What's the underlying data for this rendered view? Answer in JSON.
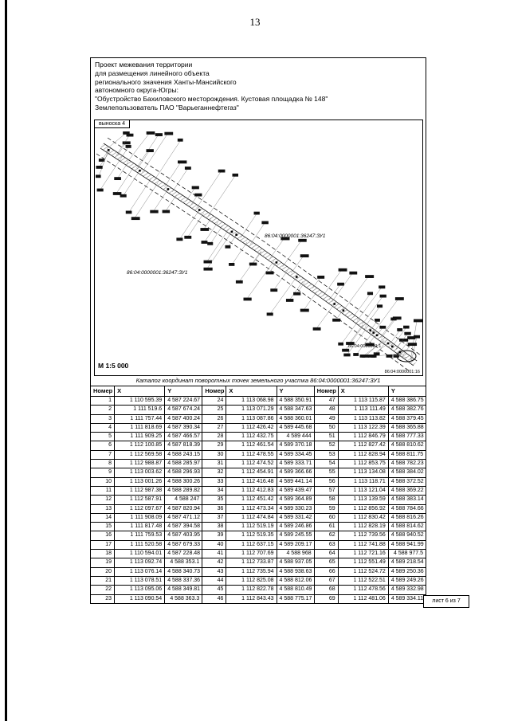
{
  "page": {
    "number": "13",
    "sheet_label": "лист 6 из 7"
  },
  "header": {
    "lines": [
      "Проект межевания территории",
      "для размещения линейного объекта",
      "регионального значения Ханты-Мансийского",
      "автономного округа-Югры:",
      "\"Обустройство Бахиловского месторождения. Кустовая площадка № 148\"",
      "Землепользователь ПАО \"Варьеганнефтегаз\""
    ]
  },
  "map": {
    "callout_label": "выноска 4",
    "scale_label": "М 1:5 000",
    "parcel_label_1": "86:04:0000001:36247:ЗУ1",
    "parcel_label_2": "86:04:0000001:36247:ЗУ1",
    "corner_label_right": "86:04:0000001:1",
    "corner_label_bottom": "86:04:0000001:16"
  },
  "table": {
    "caption": "Каталог координат поворотных точек земельного участка 86:04:0000001:36247:ЗУ1",
    "headers": [
      "Номер",
      "X",
      "Y",
      "Номер",
      "X",
      "Y",
      "Номер",
      "X",
      "Y"
    ],
    "rows": [
      [
        "1",
        "1 110 595.39",
        "4 587 224.67",
        "24",
        "1 113 068.98",
        "4 588 350.91",
        "47",
        "1 113 115.87",
        "4 588 386.75"
      ],
      [
        "2",
        "1 111 519.6",
        "4 587 674.24",
        "25",
        "1 113 071.29",
        "4 588 347.63",
        "48",
        "1 113 111.49",
        "4 588 382.76"
      ],
      [
        "3",
        "1 111 757.44",
        "4 587 400.24",
        "26",
        "1 113 087.86",
        "4 588 360.01",
        "49",
        "1 113 113.82",
        "4 588 379.45"
      ],
      [
        "4",
        "1 111 818.69",
        "4 587 390.34",
        "27",
        "1 112 426.42",
        "4 589 445.68",
        "50",
        "1 113 122.39",
        "4 588 365.88"
      ],
      [
        "5",
        "1 111 909.25",
        "4 587 466.57",
        "28",
        "1 112 432.75",
        "4 589 444",
        "51",
        "1 112 846.79",
        "4 588 777.33"
      ],
      [
        "6",
        "1 112 100.85",
        "4 587 818.39",
        "29",
        "1 112 461.54",
        "4 589 370.18",
        "52",
        "1 112 827.42",
        "4 588 810.62"
      ],
      [
        "7",
        "1 112 569.58",
        "4 588 243.15",
        "30",
        "1 112 478.55",
        "4 589 334.45",
        "53",
        "1 112 828.94",
        "4 588 811.75"
      ],
      [
        "8",
        "1 112 988.87",
        "4 588 285.97",
        "31",
        "1 112 474.52",
        "4 589 333.71",
        "54",
        "1 112 853.75",
        "4 588 782.23"
      ],
      [
        "9",
        "1 113 003.62",
        "4 588 296.93",
        "32",
        "1 112 454.91",
        "4 589 366.66",
        "55",
        "1 113 134.08",
        "4 588 384.02"
      ],
      [
        "10",
        "1 113 001.26",
        "4 588 300.26",
        "33",
        "1 112 416.48",
        "4 589 441.14",
        "56",
        "1 113 118.71",
        "4 588 372.52"
      ],
      [
        "11",
        "1 112 987.38",
        "4 588 289.82",
        "34",
        "1 112 412.83",
        "4 589 439.47",
        "57",
        "1 113 121.04",
        "4 588 369.22"
      ],
      [
        "12",
        "1 112 587.91",
        "4 588 247",
        "35",
        "1 112 451.42",
        "4 589 364.89",
        "58",
        "1 113 139.59",
        "4 588 383.14"
      ],
      [
        "13",
        "1 112 097.67",
        "4 587 820.94",
        "36",
        "1 112 473.34",
        "4 589 330.23",
        "59",
        "1 112 856.92",
        "4 588 784.66"
      ],
      [
        "14",
        "1 111 908.09",
        "4 587 471.12",
        "37",
        "1 112 474.84",
        "4 589 331.42",
        "60",
        "1 112 830.42",
        "4 588 816.26"
      ],
      [
        "15",
        "1 111 817.48",
        "4 587 394.58",
        "38",
        "1 112 519.19",
        "4 589 246.86",
        "61",
        "1 112 828.19",
        "4 588 814.62"
      ],
      [
        "16",
        "1 111 759.53",
        "4 587 403.95",
        "39",
        "1 112 519.35",
        "4 589 245.55",
        "62",
        "1 112 739.56",
        "4 588 940.52"
      ],
      [
        "17",
        "1 111 520.58",
        "4 587 679.33",
        "40",
        "1 112 637.15",
        "4 589 209.17",
        "63",
        "1 112 741.88",
        "4 588 941.99"
      ],
      [
        "18",
        "1 110 594.01",
        "4 587 228.48",
        "41",
        "1 112 707.69",
        "4 588 968",
        "64",
        "1 112 721.16",
        "4 588 977.5"
      ],
      [
        "19",
        "1 113 092.74",
        "4 588 353.1",
        "42",
        "1 112 733.87",
        "4 588 937.05",
        "65",
        "1 112 551.49",
        "4 589 218.54"
      ],
      [
        "20",
        "1 113 076.14",
        "4 588 340.73",
        "43",
        "1 112 735.94",
        "4 588 938.63",
        "66",
        "1 112 524.72",
        "4 589 250.36"
      ],
      [
        "21",
        "1 113 078.51",
        "4 588 337.36",
        "44",
        "1 112 825.08",
        "4 588 812.06",
        "67",
        "1 112 522.51",
        "4 589 249.26"
      ],
      [
        "22",
        "1 113 095.06",
        "4 588 349.81",
        "45",
        "1 112 822.78",
        "4 588 810.49",
        "68",
        "1 112 478.56",
        "4 589 332.98"
      ],
      [
        "23",
        "1 113 090.54",
        "4 588 363.3",
        "46",
        "1 112 843.43",
        "4 588 775.17",
        "69",
        "1 112 481.06",
        "4 589 334.11"
      ]
    ]
  }
}
